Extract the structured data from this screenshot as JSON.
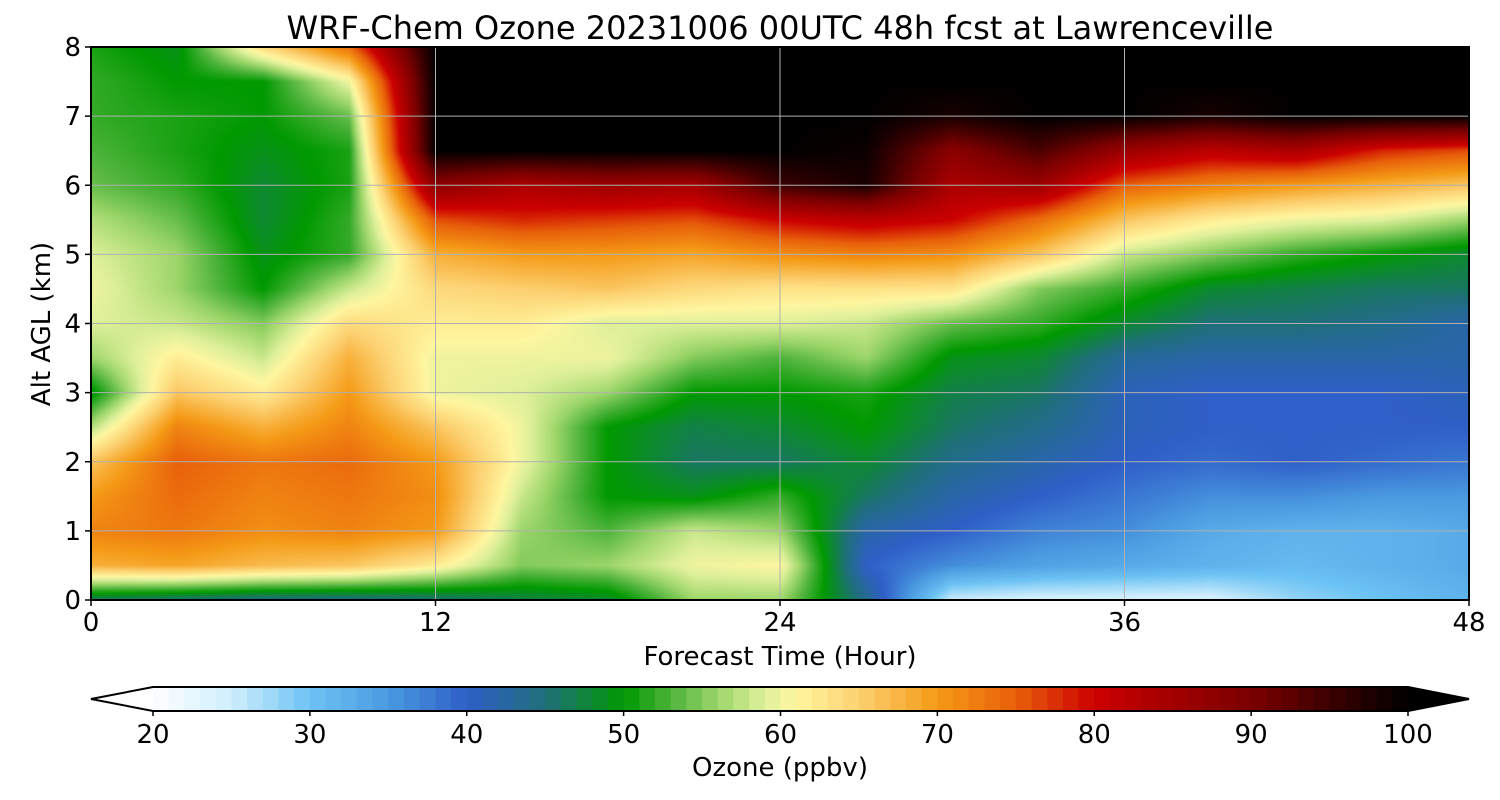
{
  "chart_data": {
    "type": "heatmap",
    "title": "WRF-Chem Ozone  20231006 00UTC 48h fcst at Lawrenceville",
    "xlabel": "Forecast Time (Hour)",
    "ylabel": "Alt AGL (km)",
    "xlim": [
      0,
      48
    ],
    "ylim": [
      0,
      8
    ],
    "xticks": [
      "0",
      "12",
      "24",
      "36",
      "48"
    ],
    "xtick_values": [
      0,
      12,
      24,
      36,
      48
    ],
    "yticks": [
      "0",
      "1",
      "2",
      "3",
      "4",
      "5",
      "6",
      "7",
      "8"
    ],
    "ytick_values": [
      0,
      1,
      2,
      3,
      4,
      5,
      6,
      7,
      8
    ],
    "grid": true,
    "x": [
      0,
      3,
      6,
      9,
      12,
      15,
      18,
      21,
      24,
      27,
      30,
      33,
      36,
      39,
      42,
      45,
      48
    ],
    "y": [
      0,
      0.5,
      1,
      1.5,
      2,
      2.5,
      3,
      3.5,
      4,
      4.5,
      5,
      5.5,
      6,
      6.5,
      7,
      7.5,
      8
    ],
    "z": [
      [
        46,
        45,
        44,
        44,
        45,
        47,
        48,
        56,
        56,
        44,
        25,
        24,
        24,
        24,
        28,
        30,
        32
      ],
      [
        68,
        69,
        67,
        66,
        62,
        55,
        56,
        60,
        61,
        40,
        36,
        34,
        33,
        32,
        31,
        32,
        33
      ],
      [
        72,
        73,
        71,
        72,
        70,
        56,
        53,
        58,
        56,
        42,
        40,
        37,
        36,
        33,
        32,
        32,
        33
      ],
      [
        70,
        74,
        72,
        73,
        71,
        58,
        50,
        49,
        52,
        46,
        42,
        40,
        38,
        36,
        36,
        35,
        35
      ],
      [
        66,
        75,
        73,
        74,
        70,
        60,
        50,
        46,
        46,
        48,
        44,
        42,
        40,
        39,
        40,
        39,
        38
      ],
      [
        57,
        72,
        68,
        72,
        66,
        60,
        50,
        47,
        48,
        50,
        46,
        44,
        41,
        40,
        40,
        40,
        40
      ],
      [
        49,
        66,
        62,
        70,
        60,
        59,
        56,
        50,
        50,
        51,
        47,
        46,
        41,
        40,
        40,
        40,
        41
      ],
      [
        56,
        62,
        58,
        68,
        60,
        60,
        60,
        55,
        53,
        56,
        49,
        48,
        43,
        42,
        42,
        42,
        42
      ],
      [
        59,
        58,
        55,
        64,
        62,
        62,
        59,
        59,
        59,
        58,
        54,
        52,
        48,
        45,
        45,
        44,
        42
      ],
      [
        60,
        56,
        50,
        58,
        64,
        65,
        66,
        64,
        63,
        63,
        63,
        55,
        52,
        48,
        47,
        46,
        46
      ],
      [
        59,
        56,
        49,
        52,
        68,
        70,
        70,
        69,
        71,
        72,
        71,
        66,
        58,
        55,
        52,
        50,
        48
      ],
      [
        57,
        54,
        48,
        52,
        76,
        78,
        77,
        76,
        80,
        82,
        80,
        74,
        66,
        62,
        60,
        59,
        56
      ],
      [
        54,
        52,
        48,
        51,
        88,
        84,
        86,
        85,
        95,
        98,
        84,
        86,
        75,
        72,
        70,
        68,
        66
      ],
      [
        53,
        51,
        49,
        51,
        100,
        100,
        100,
        100,
        100,
        99,
        88,
        94,
        86,
        82,
        84,
        78,
        76
      ],
      [
        52,
        51,
        50,
        54,
        100,
        100,
        100,
        100,
        100,
        100,
        98,
        100,
        100,
        98,
        100,
        100,
        100
      ],
      [
        52,
        50,
        50,
        60,
        100,
        100,
        100,
        100,
        100,
        100,
        100,
        100,
        100,
        100,
        100,
        100,
        100
      ],
      [
        51,
        49,
        64,
        74,
        100,
        100,
        100,
        100,
        100,
        100,
        100,
        100,
        100,
        100,
        100,
        100,
        100
      ]
    ],
    "colorbar": {
      "label": "Ozone  (ppbv)",
      "range": [
        20,
        100
      ],
      "ticks": [
        "20",
        "30",
        "40",
        "50",
        "60",
        "70",
        "80",
        "90",
        "100"
      ],
      "tick_values": [
        20,
        30,
        40,
        50,
        60,
        70,
        80,
        90,
        100
      ],
      "extend": "both",
      "stops": [
        {
          "v": 20,
          "color": "#ffffff"
        },
        {
          "v": 25,
          "color": "#cfeefc"
        },
        {
          "v": 30,
          "color": "#6cc3f4"
        },
        {
          "v": 35,
          "color": "#4a9ae0"
        },
        {
          "v": 40,
          "color": "#2f5fc8"
        },
        {
          "v": 45,
          "color": "#1f6f7a"
        },
        {
          "v": 50,
          "color": "#009900"
        },
        {
          "v": 53,
          "color": "#4db33a"
        },
        {
          "v": 56,
          "color": "#9dd66a"
        },
        {
          "v": 59,
          "color": "#dff09a"
        },
        {
          "v": 61,
          "color": "#fff6a0"
        },
        {
          "v": 65,
          "color": "#fcd070"
        },
        {
          "v": 70,
          "color": "#f59a16"
        },
        {
          "v": 75,
          "color": "#e8600a"
        },
        {
          "v": 80,
          "color": "#cc0000"
        },
        {
          "v": 90,
          "color": "#7a0000"
        },
        {
          "v": 100,
          "color": "#000000"
        }
      ]
    }
  }
}
